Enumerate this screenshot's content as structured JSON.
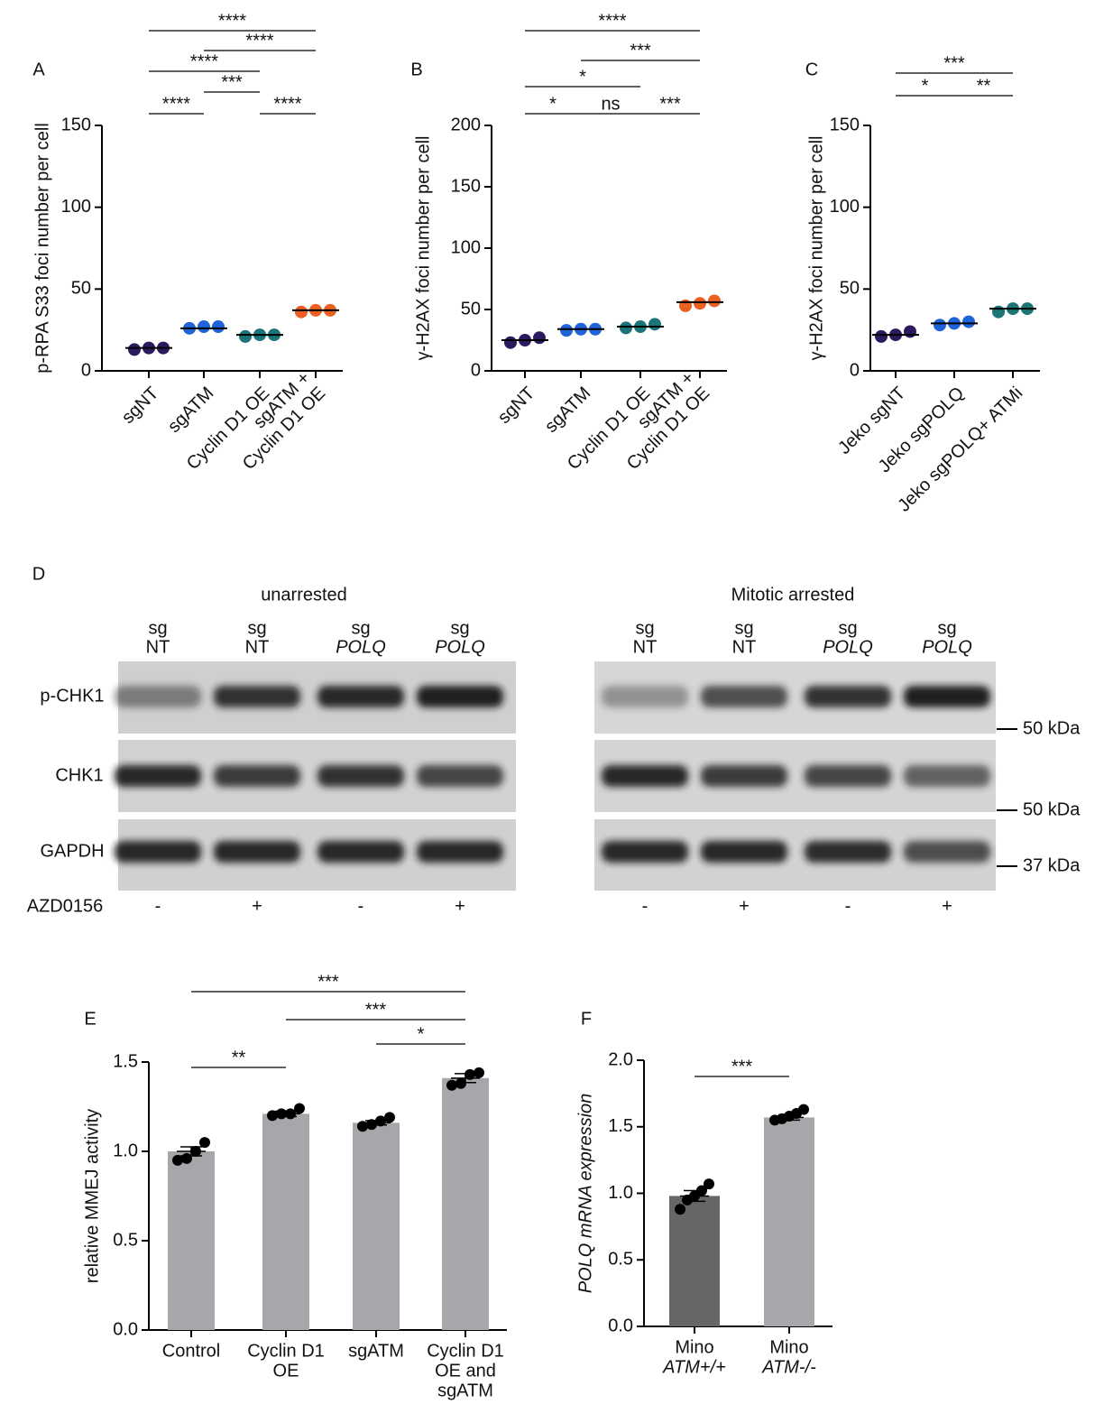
{
  "chart_data": [
    {
      "type": "dot",
      "panel": "A",
      "y_label": "p-RPA S33 foci number per cell",
      "categories": [
        [
          "sgNT"
        ],
        [
          "sgATM"
        ],
        [
          "Cyclin D1 OE"
        ],
        [
          "sgATM +",
          "Cyclin D1 OE"
        ]
      ],
      "colors": [
        "#2b1a5e",
        "#1e63d8",
        "#1a7478",
        "#ea5f22"
      ],
      "values": [
        [
          13,
          14,
          14
        ],
        [
          26,
          27,
          27
        ],
        [
          21,
          22,
          22
        ],
        [
          36,
          37,
          37
        ]
      ],
      "means": [
        14,
        26,
        22,
        37
      ],
      "ylim": [
        0,
        150
      ],
      "yticks": [
        0,
        50,
        100,
        150
      ],
      "annotations": [
        "****",
        "****",
        "***",
        "****",
        "****",
        "****"
      ]
    },
    {
      "type": "dot",
      "panel": "B",
      "y_label": "γ-H2AX foci number per cell",
      "categories": [
        [
          "sgNT"
        ],
        [
          "sgATM"
        ],
        [
          "Cyclin D1 OE"
        ],
        [
          "sgATM +",
          "Cyclin D1 OE"
        ]
      ],
      "colors": [
        "#2b1a5e",
        "#1e63d8",
        "#1a7478",
        "#ea5f22"
      ],
      "values": [
        [
          23,
          25,
          27
        ],
        [
          33,
          34,
          34
        ],
        [
          35,
          36,
          38
        ],
        [
          53,
          55,
          57
        ]
      ],
      "means": [
        25,
        34,
        36,
        56
      ],
      "ylim": [
        0,
        200
      ],
      "yticks": [
        0,
        50,
        100,
        150,
        200
      ],
      "annotations": [
        "*",
        "ns",
        "***",
        "*",
        "***",
        "****"
      ]
    },
    {
      "type": "dot",
      "panel": "C",
      "y_label": "γ-H2AX foci number per cell",
      "categories": [
        [
          "Jeko sgNT"
        ],
        [
          "Jeko sgPOLQ"
        ],
        [
          "Jeko sgPOLQ+ ATMi"
        ]
      ],
      "colors": [
        "#2b1a5e",
        "#1e63d8",
        "#1a7478"
      ],
      "values": [
        [
          21,
          22,
          24
        ],
        [
          28,
          29,
          30
        ],
        [
          36,
          38,
          38
        ]
      ],
      "means": [
        22,
        29,
        38
      ],
      "ylim": [
        0,
        150
      ],
      "yticks": [
        0,
        50,
        100,
        150
      ],
      "annotations": [
        "*",
        "**",
        "***"
      ]
    },
    {
      "type": "bar",
      "panel": "E",
      "y_label": "relative MMEJ activity",
      "categories": [
        [
          "Control"
        ],
        [
          "Cyclin D1",
          "OE"
        ],
        [
          "sgATM"
        ],
        [
          "Cyclin D1",
          "OE and",
          "sgATM"
        ]
      ],
      "colors": [
        "#a7a7ab",
        "#a7a7ab",
        "#a7a7ab",
        "#a7a7ab"
      ],
      "values": [
        1.0,
        1.21,
        1.16,
        1.41
      ],
      "errors": [
        0.025,
        0.015,
        0.012,
        0.025
      ],
      "points": [
        [
          0.95,
          0.96,
          1.0,
          1.05
        ],
        [
          1.2,
          1.21,
          1.21,
          1.24
        ],
        [
          1.14,
          1.15,
          1.17,
          1.19
        ],
        [
          1.37,
          1.38,
          1.43,
          1.44
        ]
      ],
      "ylim": [
        0,
        1.5
      ],
      "yticks": [
        {
          "value": 0,
          "label": "0.0"
        },
        {
          "value": 0.5,
          "label": "0.5"
        },
        {
          "value": 1,
          "label": "1.0"
        },
        {
          "value": 1.5,
          "label": "1.5"
        }
      ],
      "annotations": [
        "**",
        "*",
        "***",
        "***"
      ]
    },
    {
      "type": "bar",
      "panel": "F",
      "y_label": "POLQ mRNA expression",
      "categories": [
        [
          "Mino",
          "ATM+/+"
        ],
        [
          "Mino",
          "ATM-/-"
        ]
      ],
      "colors": [
        "#666666",
        "#a7a7ab"
      ],
      "values": [
        0.98,
        1.57
      ],
      "errors": [
        0.04,
        0.02
      ],
      "points": [
        [
          0.88,
          0.95,
          0.98,
          1.02,
          1.07
        ],
        [
          1.55,
          1.56,
          1.58,
          1.6,
          1.63
        ]
      ],
      "ylim": [
        0,
        2
      ],
      "yticks": [
        {
          "value": 0,
          "label": "0.0"
        },
        {
          "value": 0.5,
          "label": "0.5"
        },
        {
          "value": 1,
          "label": "1.0"
        },
        {
          "value": 1.5,
          "label": "1.5"
        },
        {
          "value": 2,
          "label": "2.0"
        }
      ],
      "annotations": [
        "***"
      ]
    }
  ],
  "blot": {
    "panel": "D",
    "groups": [
      "unarrested",
      "Mitotic arrested"
    ],
    "lanes": [
      [
        "sg",
        "NT"
      ],
      [
        "sg",
        "NT"
      ],
      [
        "sg",
        "POLQ"
      ],
      [
        "sg",
        "POLQ"
      ],
      [
        "sg",
        "NT"
      ],
      [
        "sg",
        "NT"
      ],
      [
        "sg",
        "POLQ"
      ],
      [
        "sg",
        "POLQ"
      ]
    ],
    "rows": [
      "p-CHK1",
      "CHK1",
      "GAPDH"
    ],
    "markers": [
      "50 kDa",
      "50 kDa",
      "37 kDa"
    ],
    "treatment": {
      "label": "AZD0156",
      "values": [
        "-",
        "+",
        "-",
        "+",
        "-",
        "+",
        "-",
        "+"
      ]
    }
  }
}
